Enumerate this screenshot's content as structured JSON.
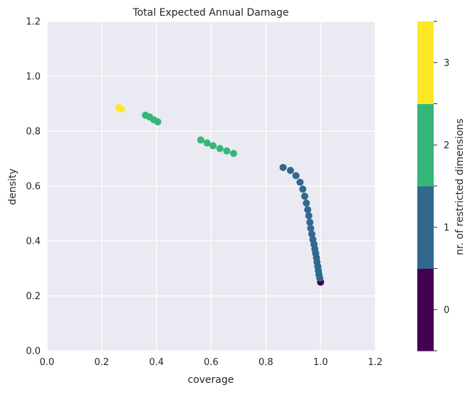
{
  "chart_data": {
    "type": "scatter",
    "title": "Total Expected Annual Damage",
    "xlabel": "coverage",
    "ylabel": "density",
    "xlim": [
      0.0,
      1.2
    ],
    "ylim": [
      0.0,
      1.2
    ],
    "xticks": [
      "0.0",
      "0.2",
      "0.4",
      "0.6",
      "0.8",
      "1.0",
      "1.2"
    ],
    "yticks": [
      "0.0",
      "0.2",
      "0.4",
      "0.6",
      "0.8",
      "1.0",
      "1.2"
    ],
    "grid": true,
    "background": "#eaeaf2",
    "colorbar": {
      "label": "nr. of restricted dimensions",
      "levels": [
        {
          "value": 0,
          "label": "0",
          "color": "#440154"
        },
        {
          "value": 1,
          "label": "1",
          "color": "#31688e"
        },
        {
          "value": 2,
          "label": "2",
          "color": "#35b779"
        },
        {
          "value": 3,
          "label": "3",
          "color": "#fde725"
        }
      ]
    },
    "points": [
      {
        "x": 1.0,
        "y": 0.25,
        "c": 0
      },
      {
        "x": 0.863,
        "y": 0.668,
        "c": 1
      },
      {
        "x": 0.89,
        "y": 0.657,
        "c": 1
      },
      {
        "x": 0.91,
        "y": 0.638,
        "c": 1
      },
      {
        "x": 0.925,
        "y": 0.614,
        "c": 1
      },
      {
        "x": 0.935,
        "y": 0.589,
        "c": 1
      },
      {
        "x": 0.942,
        "y": 0.563,
        "c": 1
      },
      {
        "x": 0.948,
        "y": 0.538,
        "c": 1
      },
      {
        "x": 0.953,
        "y": 0.514,
        "c": 1
      },
      {
        "x": 0.957,
        "y": 0.492,
        "c": 1
      },
      {
        "x": 0.961,
        "y": 0.468,
        "c": 1
      },
      {
        "x": 0.964,
        "y": 0.446,
        "c": 1
      },
      {
        "x": 0.968,
        "y": 0.425,
        "c": 1
      },
      {
        "x": 0.972,
        "y": 0.405,
        "c": 1
      },
      {
        "x": 0.976,
        "y": 0.388,
        "c": 1
      },
      {
        "x": 0.979,
        "y": 0.371,
        "c": 1
      },
      {
        "x": 0.982,
        "y": 0.355,
        "c": 1
      },
      {
        "x": 0.985,
        "y": 0.339,
        "c": 1
      },
      {
        "x": 0.987,
        "y": 0.323,
        "c": 1
      },
      {
        "x": 0.99,
        "y": 0.307,
        "c": 1
      },
      {
        "x": 0.992,
        "y": 0.292,
        "c": 1
      },
      {
        "x": 0.994,
        "y": 0.278,
        "c": 1
      },
      {
        "x": 0.997,
        "y": 0.265,
        "c": 1
      },
      {
        "x": 0.36,
        "y": 0.858,
        "c": 2
      },
      {
        "x": 0.375,
        "y": 0.852,
        "c": 2
      },
      {
        "x": 0.39,
        "y": 0.842,
        "c": 2
      },
      {
        "x": 0.405,
        "y": 0.834,
        "c": 2
      },
      {
        "x": 0.562,
        "y": 0.768,
        "c": 2
      },
      {
        "x": 0.585,
        "y": 0.757,
        "c": 2
      },
      {
        "x": 0.607,
        "y": 0.747,
        "c": 2
      },
      {
        "x": 0.632,
        "y": 0.737,
        "c": 2
      },
      {
        "x": 0.657,
        "y": 0.728,
        "c": 2
      },
      {
        "x": 0.682,
        "y": 0.719,
        "c": 2
      },
      {
        "x": 0.262,
        "y": 0.886,
        "c": 3
      },
      {
        "x": 0.272,
        "y": 0.881,
        "c": 3
      }
    ]
  }
}
